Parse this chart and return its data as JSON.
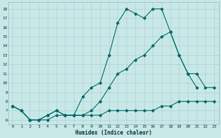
{
  "xlabel": "Humidex (Indice chaleur)",
  "background_color": "#c8e8e8",
  "grid_color": "#afd0d0",
  "line_color": "#006868",
  "xlim": [
    -0.5,
    23.5
  ],
  "ylim": [
    5.5,
    18.7
  ],
  "yticks": [
    6,
    7,
    8,
    9,
    10,
    11,
    12,
    13,
    14,
    15,
    16,
    17,
    18
  ],
  "xticks": [
    0,
    1,
    2,
    3,
    4,
    5,
    6,
    7,
    8,
    9,
    10,
    11,
    12,
    13,
    14,
    15,
    16,
    17,
    18,
    19,
    20,
    21,
    22,
    23
  ],
  "line1_x": [
    0,
    1,
    2,
    3,
    4,
    5,
    6,
    7,
    8,
    9,
    10,
    11,
    12,
    13,
    14,
    15,
    16,
    17,
    18,
    19,
    20,
    21
  ],
  "line1_y": [
    7.5,
    7.0,
    6.0,
    6.0,
    6.5,
    7.0,
    6.5,
    6.5,
    8.5,
    9.5,
    10.0,
    13.0,
    16.5,
    18.0,
    17.5,
    17.0,
    18.0,
    18.0,
    15.5,
    13.0,
    11.0,
    9.5
  ],
  "line2_x": [
    0,
    1,
    2,
    3,
    4,
    5,
    6,
    7,
    8,
    9,
    10,
    11,
    12,
    13,
    14,
    15,
    16,
    17,
    18,
    19,
    20,
    21,
    22,
    23
  ],
  "line2_y": [
    7.5,
    7.0,
    6.0,
    6.0,
    6.5,
    7.0,
    6.5,
    6.5,
    6.5,
    7.0,
    8.0,
    9.5,
    11.0,
    11.5,
    12.5,
    13.0,
    14.0,
    15.0,
    15.5,
    13.0,
    11.0,
    11.0,
    9.5,
    9.5
  ],
  "line3_x": [
    0,
    1,
    2,
    3,
    4,
    5,
    6,
    7,
    8,
    9,
    10,
    11,
    12,
    13,
    14,
    15,
    16,
    17,
    18,
    19,
    20,
    21,
    22,
    23
  ],
  "line3_y": [
    7.5,
    7.0,
    6.0,
    6.0,
    6.0,
    6.5,
    6.5,
    6.5,
    6.5,
    6.5,
    6.5,
    7.0,
    7.0,
    7.0,
    7.0,
    7.0,
    7.0,
    7.5,
    7.5,
    8.0,
    8.0,
    8.0,
    8.0,
    8.0
  ]
}
